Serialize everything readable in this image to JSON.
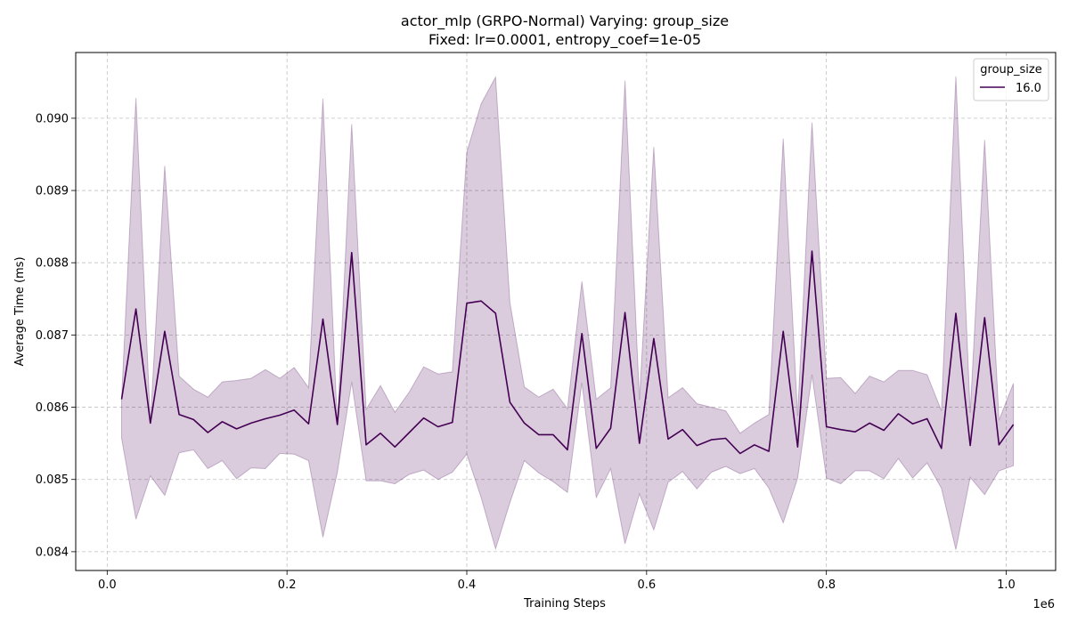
{
  "chart_data": {
    "type": "line",
    "title": "actor_mlp (GRPO-Normal) Varying: group_size",
    "subtitle": "Fixed: lr=0.0001, entropy_coef=1e-05",
    "xlabel": "Training Steps",
    "ylabel": "Average Time (ms)",
    "x_scale_label": "1e6",
    "xlim": [
      -0.035,
      1.055
    ],
    "ylim": [
      0.08374,
      0.09091
    ],
    "x_ticks": [
      0.0,
      0.2,
      0.4,
      0.6,
      0.8,
      1.0
    ],
    "x_tick_labels": [
      "0.0",
      "0.2",
      "0.4",
      "0.6",
      "0.8",
      "1.0"
    ],
    "y_ticks": [
      0.084,
      0.085,
      0.086,
      0.087,
      0.088,
      0.089,
      0.09
    ],
    "y_tick_labels": [
      "0.084",
      "0.085",
      "0.086",
      "0.087",
      "0.088",
      "0.089",
      "0.090"
    ],
    "grid": true,
    "legend": {
      "title": "group_size",
      "placement": "top-right"
    },
    "colors": {
      "line": "#440154",
      "band": "#440154"
    },
    "series": [
      {
        "name": "16.0",
        "x": [
          0.016,
          0.032,
          0.048,
          0.064,
          0.08,
          0.096,
          0.112,
          0.128,
          0.144,
          0.16,
          0.176,
          0.192,
          0.208,
          0.224,
          0.24,
          0.256,
          0.272,
          0.288,
          0.304,
          0.32,
          0.336,
          0.352,
          0.368,
          0.384,
          0.4,
          0.416,
          0.432,
          0.448,
          0.464,
          0.48,
          0.496,
          0.512,
          0.528,
          0.544,
          0.56,
          0.576,
          0.592,
          0.608,
          0.624,
          0.64,
          0.656,
          0.672,
          0.688,
          0.704,
          0.72,
          0.736,
          0.752,
          0.768,
          0.784,
          0.8,
          0.816,
          0.832,
          0.848,
          0.864,
          0.88,
          0.896,
          0.912,
          0.928,
          0.944,
          0.96,
          0.976,
          0.992,
          1.008
        ],
        "y": [
          0.08611,
          0.08736,
          0.08578,
          0.08705,
          0.0859,
          0.08583,
          0.08565,
          0.0858,
          0.0857,
          0.08578,
          0.08584,
          0.08589,
          0.08596,
          0.08577,
          0.08722,
          0.08576,
          0.08814,
          0.08548,
          0.08564,
          0.08545,
          0.08565,
          0.08585,
          0.08573,
          0.08579,
          0.08744,
          0.08747,
          0.0873,
          0.08607,
          0.08578,
          0.08562,
          0.08562,
          0.08541,
          0.08702,
          0.08543,
          0.08571,
          0.08731,
          0.0855,
          0.08695,
          0.08556,
          0.08569,
          0.08547,
          0.08555,
          0.08557,
          0.08536,
          0.08548,
          0.08539,
          0.08705,
          0.08545,
          0.08816,
          0.08573,
          0.08569,
          0.08566,
          0.08578,
          0.08568,
          0.08591,
          0.08577,
          0.08584,
          0.08543,
          0.0873,
          0.08547,
          0.08724,
          0.08548,
          0.08576
        ],
        "lower": [
          0.08557,
          0.08445,
          0.08505,
          0.08478,
          0.08537,
          0.08541,
          0.08515,
          0.08526,
          0.08501,
          0.08516,
          0.08515,
          0.08536,
          0.08535,
          0.08526,
          0.0842,
          0.0851,
          0.08635,
          0.08498,
          0.08498,
          0.08494,
          0.08507,
          0.08513,
          0.085,
          0.0851,
          0.08535,
          0.08475,
          0.08404,
          0.08468,
          0.08526,
          0.08509,
          0.08497,
          0.08482,
          0.08634,
          0.08475,
          0.08515,
          0.08411,
          0.0848,
          0.0843,
          0.08496,
          0.08511,
          0.08487,
          0.0851,
          0.08518,
          0.08508,
          0.08515,
          0.08488,
          0.0844,
          0.08502,
          0.08645,
          0.08502,
          0.08494,
          0.08512,
          0.08512,
          0.08501,
          0.08529,
          0.08502,
          0.08523,
          0.08488,
          0.08403,
          0.08503,
          0.08479,
          0.08512,
          0.08519
        ],
        "upper": [
          0.08611,
          0.09028,
          0.08578,
          0.08934,
          0.08643,
          0.08625,
          0.08614,
          0.08635,
          0.08637,
          0.0864,
          0.08652,
          0.0864,
          0.08655,
          0.08627,
          0.09027,
          0.08576,
          0.08992,
          0.08597,
          0.0863,
          0.08593,
          0.08621,
          0.08656,
          0.08646,
          0.08649,
          0.08953,
          0.0902,
          0.09057,
          0.08745,
          0.08628,
          0.08614,
          0.08625,
          0.08598,
          0.08774,
          0.08611,
          0.08627,
          0.09052,
          0.0861,
          0.0896,
          0.08613,
          0.08627,
          0.08605,
          0.086,
          0.08595,
          0.08564,
          0.08578,
          0.0859,
          0.08972,
          0.08588,
          0.08994,
          0.0864,
          0.08641,
          0.08619,
          0.08643,
          0.08635,
          0.08651,
          0.08651,
          0.08645,
          0.08595,
          0.09058,
          0.08592,
          0.0897,
          0.08582,
          0.08633
        ]
      }
    ]
  }
}
